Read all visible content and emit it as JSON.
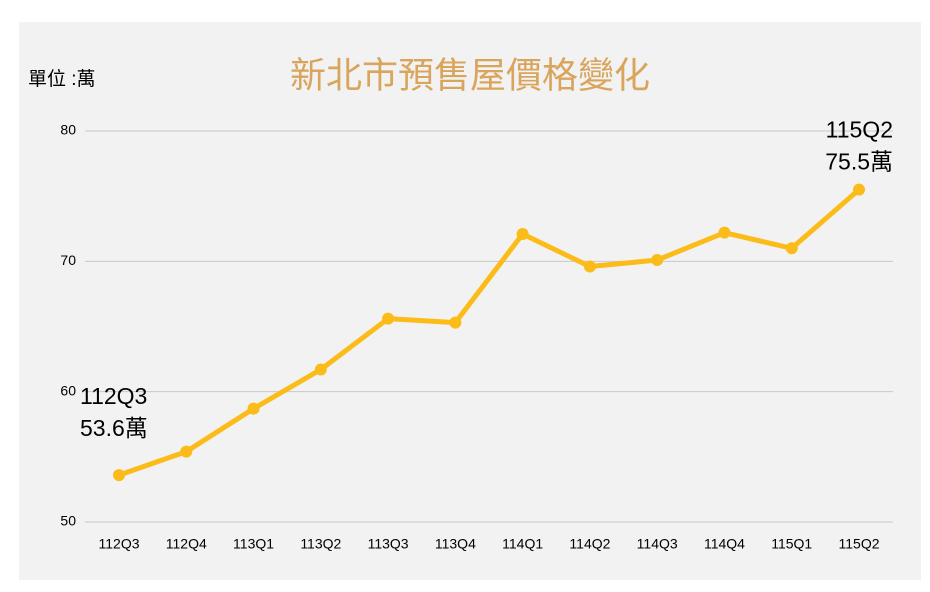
{
  "chart_data": {
    "type": "line",
    "title": "新北市預售屋價格變化",
    "unit_label": "單位 :萬",
    "categories": [
      "112Q3",
      "112Q4",
      "113Q1",
      "113Q2",
      "113Q3",
      "113Q4",
      "114Q1",
      "114Q2",
      "114Q3",
      "114Q4",
      "115Q1",
      "115Q2"
    ],
    "values": [
      53.6,
      55.4,
      58.7,
      61.7,
      65.6,
      65.3,
      72.1,
      69.6,
      70.1,
      72.2,
      71.0,
      75.5
    ],
    "value_labels": [
      "53.6萬",
      null,
      null,
      null,
      null,
      null,
      null,
      null,
      null,
      null,
      null,
      "75.5萬"
    ],
    "color": "#fbbc1a",
    "ylim": [
      50,
      80
    ],
    "yticks": [
      50,
      60,
      70,
      80
    ],
    "grid": true
  }
}
